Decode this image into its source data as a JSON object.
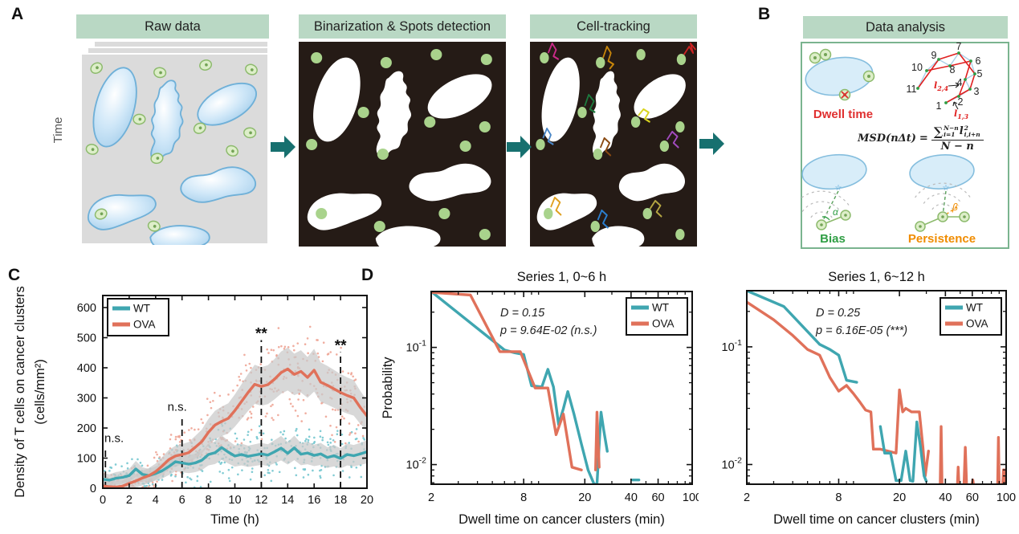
{
  "panel_labels": {
    "a": "A",
    "b": "B",
    "c": "C",
    "d": "D"
  },
  "colors": {
    "teal": "#3fa6b0",
    "coral": "#e0715a",
    "teal_scatter": "#6cc3cc",
    "coral_scatter": "#eda08f",
    "header_bg": "#b9d8c4",
    "panel_dark": "#251b16",
    "green_dot": "#a9d38c",
    "arrow": "#17706f",
    "box_border": "#7ab48f",
    "band_gray": "#c9c9c9",
    "blue_cell_stroke": "#6fb0d8",
    "red": "#e03030",
    "green": "#2f9e44",
    "orange": "#f08c00"
  },
  "panel_a": {
    "time_label": "Time",
    "steps": [
      {
        "title": "Raw data"
      },
      {
        "title": "Binarization & Spots detection"
      },
      {
        "title": "Cell-tracking"
      }
    ]
  },
  "panel_b": {
    "title": "Data analysis",
    "dwell_label": "Dwell time",
    "bias_label": "Bias",
    "persistence_label": "Persistence",
    "alpha": "α",
    "beta": "β",
    "traj_numbers": [
      "1",
      "2",
      "3",
      "4",
      "5",
      "6",
      "7",
      "8",
      "9",
      "10",
      "11"
    ],
    "l24_main": "l",
    "l24_sub": "2,4",
    "l13_main": "l",
    "l13_sub": "1,3",
    "formula": {
      "lhs": "MSD(nΔt)",
      "eq": "=",
      "sum": "∑",
      "sum_sup": "N−n",
      "sum_sub": "i=1",
      "term": "l",
      "term_sup": "2",
      "term_sub": "i,i+n",
      "den": "N − n"
    }
  },
  "chart_data": [
    {
      "id": "c",
      "type": "line",
      "xlabel": "Time (h)",
      "ylabel_lines": [
        "Density of T cells on cancer clusters",
        "(cells/mm²)"
      ],
      "xlim": [
        0,
        20
      ],
      "ylim": [
        0,
        640
      ],
      "xticks": [
        0,
        2,
        4,
        6,
        8,
        10,
        12,
        14,
        16,
        18,
        20
      ],
      "yticks": [
        0,
        100,
        200,
        300,
        400,
        500,
        600
      ],
      "x_start": 0,
      "x_step": 0.5,
      "grid": false,
      "legend_position": "top-left",
      "series": [
        {
          "name": "WT",
          "color": "teal",
          "values": [
            30,
            27,
            33,
            36,
            42,
            64,
            46,
            42,
            49,
            58,
            72,
            88,
            84,
            80,
            84,
            93,
            112,
            118,
            135,
            120,
            107,
            112,
            106,
            110,
            114,
            110,
            121,
            133,
            116,
            134,
            113,
            117,
            109,
            114,
            102,
            108,
            99,
            112,
            108,
            114,
            121
          ]
        },
        {
          "name": "OVA",
          "color": "coral",
          "values": [
            8,
            5,
            4,
            7,
            16,
            24,
            34,
            42,
            55,
            74,
            95,
            107,
            112,
            118,
            136,
            155,
            186,
            210,
            222,
            232,
            258,
            288,
            318,
            345,
            338,
            344,
            362,
            384,
            396,
            378,
            388,
            368,
            392,
            352,
            342,
            330,
            318,
            308,
            300,
            268,
            240
          ]
        }
      ],
      "annotations": [
        {
          "x": 0.2,
          "line_top": 138,
          "label": "n.s."
        },
        {
          "x": 6,
          "line_top": 242,
          "label": "n.s."
        },
        {
          "x": 12,
          "line_top": 492,
          "label": "**"
        },
        {
          "x": 18,
          "line_top": 452,
          "label": "**"
        }
      ],
      "legend": [
        {
          "name": "WT",
          "color": "teal"
        },
        {
          "name": "OVA",
          "color": "coral"
        }
      ]
    },
    {
      "id": "d1",
      "type": "line",
      "xscale": "log",
      "yscale": "log",
      "title": "Series 1, 0~6 h",
      "stats": [
        "D = 0.15",
        "p = 9.64E-02 (n.s.)"
      ],
      "xlabel": "Dwell time on cancer clusters (min)",
      "ylabel": "Probability",
      "xlim": [
        2,
        100
      ],
      "ylim": [
        0.0068,
        0.3
      ],
      "xticks": [
        2,
        8,
        20,
        40,
        60,
        100
      ],
      "yticks": [
        {
          "value": 0.1,
          "base": "10",
          "exp": "-1"
        },
        {
          "value": 0.01,
          "base": "10",
          "exp": "-2"
        }
      ],
      "legend_position": "top-right",
      "series": [
        {
          "name": "WT",
          "color": "teal",
          "segments": [
            [
              [
                2,
                0.3
              ],
              [
                6,
                0.095
              ],
              [
                7,
                0.09
              ],
              [
                8,
                0.087
              ],
              [
                9,
                0.047
              ],
              [
                10.5,
                0.046
              ],
              [
                11.5,
                0.065
              ],
              [
                12.5,
                0.046
              ],
              [
                13.5,
                0.022
              ],
              [
                14.5,
                0.03
              ],
              [
                15.5,
                0.042
              ],
              [
                17,
                0.027
              ],
              [
                19,
                0.015
              ],
              [
                21,
                0.009
              ],
              [
                23,
                0.0068
              ],
              [
                24,
                0.0068
              ],
              [
                25.5,
                0.028
              ],
              [
                26.5,
                0.02
              ],
              [
                28,
                0.013
              ]
            ],
            [
              [
                41,
                0.0074
              ],
              [
                45,
                0.0074
              ]
            ]
          ]
        },
        {
          "name": "OVA",
          "color": "coral",
          "segments": [
            [
              [
                2,
                0.295
              ],
              [
                3.6,
                0.28
              ],
              [
                5.6,
                0.092
              ],
              [
                7.6,
                0.092
              ],
              [
                9.5,
                0.045
              ],
              [
                11.5,
                0.045
              ],
              [
                13,
                0.018
              ],
              [
                14.5,
                0.027
              ],
              [
                16.5,
                0.0095
              ],
              [
                19,
                0.009
              ]
            ],
            [
              [
                23.5,
                0.009
              ],
              [
                24,
                0.028
              ],
              [
                24.8,
                0.0095
              ]
            ]
          ]
        }
      ],
      "legend": [
        {
          "name": "WT",
          "color": "teal"
        },
        {
          "name": "OVA",
          "color": "coral"
        }
      ]
    },
    {
      "id": "d2",
      "type": "line",
      "xscale": "log",
      "yscale": "log",
      "title": "Series 1, 6~12 h",
      "stats": [
        "D = 0.25",
        "p = 6.16E-05 (***)"
      ],
      "xlabel": "Dwell time on cancer clusters (min)",
      "ylabel": "",
      "xlim": [
        2,
        100
      ],
      "ylim": [
        0.0068,
        0.3
      ],
      "xticks": [
        2,
        8,
        20,
        40,
        60,
        100
      ],
      "yticks": [
        {
          "value": 0.1,
          "base": "10",
          "exp": "-1"
        },
        {
          "value": 0.01,
          "base": "10",
          "exp": "-2"
        }
      ],
      "legend_position": "top-right",
      "series": [
        {
          "name": "OVA",
          "color": "coral",
          "segments": [
            [
              [
                2,
                0.24
              ],
              [
                3,
                0.17
              ],
              [
                4,
                0.125
              ],
              [
                5,
                0.095
              ],
              [
                6,
                0.085
              ],
              [
                7,
                0.055
              ],
              [
                8,
                0.042
              ],
              [
                9,
                0.047
              ],
              [
                10,
                0.04
              ],
              [
                11,
                0.034
              ],
              [
                12,
                0.029
              ],
              [
                13,
                0.028
              ],
              [
                13.5,
                0.0135
              ],
              [
                15,
                0.0135
              ],
              [
                19,
                0.0125
              ],
              [
                20,
                0.043
              ],
              [
                21,
                0.028
              ],
              [
                22,
                0.03
              ],
              [
                24,
                0.028
              ],
              [
                27,
                0.028
              ],
              [
                28.5,
                0.014
              ],
              [
                29.5,
                0.008
              ],
              [
                31,
                0.013
              ]
            ],
            [
              [
                37,
                0.0069
              ],
              [
                37.5,
                0.021
              ],
              [
                38,
                0.0069
              ]
            ],
            [
              [
                48,
                0.0069
              ],
              [
                48.5,
                0.0095
              ],
              [
                49,
                0.0069
              ]
            ],
            [
              [
                53,
                0.0069
              ],
              [
                54,
                0.014
              ],
              [
                55,
                0.0069
              ]
            ],
            [
              [
                60,
                0.0069
              ],
              [
                60.5,
                0.0074
              ],
              [
                61,
                0.0069
              ]
            ],
            [
              [
                88,
                0.0069
              ],
              [
                89,
                0.017
              ],
              [
                90,
                0.0069
              ]
            ],
            [
              [
                95,
                0.0069
              ],
              [
                96,
                0.009
              ],
              [
                97,
                0.0069
              ],
              [
                97.5,
                0.0069
              ],
              [
                98,
                0.009
              ],
              [
                99,
                0.0069
              ]
            ]
          ]
        },
        {
          "name": "WT",
          "color": "teal",
          "segments": [
            [
              [
                2,
                0.3
              ],
              [
                3.5,
                0.22
              ],
              [
                6,
                0.105
              ],
              [
                7,
                0.095
              ],
              [
                8,
                0.085
              ],
              [
                9,
                0.052
              ],
              [
                10.5,
                0.05
              ]
            ],
            [
              [
                15,
                0.021
              ],
              [
                16,
                0.0125
              ],
              [
                17.5,
                0.0125
              ],
              [
                19,
                0.0073
              ],
              [
                20.5,
                0.0073
              ],
              [
                22,
                0.013
              ],
              [
                23.5,
                0.0073
              ],
              [
                24.5,
                0.0072
              ],
              [
                26,
                0.023
              ],
              [
                27.5,
                0.014
              ],
              [
                29,
                0.008
              ],
              [
                30,
                0.0072
              ]
            ]
          ]
        }
      ],
      "legend": [
        {
          "name": "WT",
          "color": "teal"
        },
        {
          "name": "OVA",
          "color": "coral"
        }
      ]
    }
  ]
}
